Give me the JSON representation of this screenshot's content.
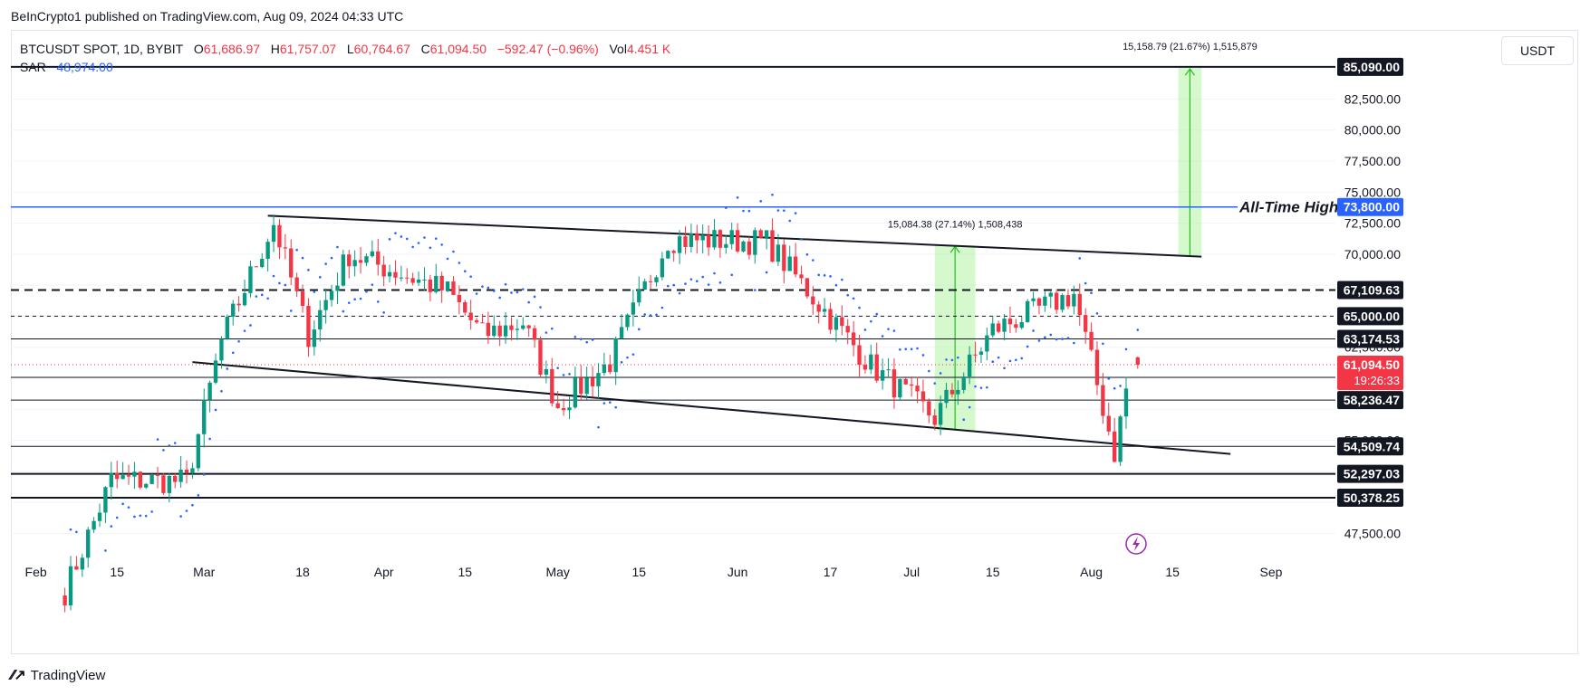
{
  "caption": "BeInCrypto1 published on TradingView.com, Aug 09, 2024 04:33 UTC",
  "legend": {
    "symbol": "BTCUSDT SPOT, 1D, BYBIT",
    "o_label": "O",
    "o_value": "61,686.97",
    "h_label": "H",
    "h_value": "61,757.07",
    "l_label": "L",
    "l_value": "60,764.67",
    "c_label": "C",
    "c_value": "61,094.50",
    "change": "−592.47 (−0.96%)",
    "vol_label": "Vol",
    "vol_value": "4.451 K",
    "sar_label": "SAR",
    "sar_value": "48,974.00"
  },
  "currency": "USDT",
  "footer": {
    "brand": "TradingView"
  },
  "colors": {
    "up": "#089981",
    "down": "#f23645",
    "sar": "#2962ff",
    "ath": "#2962ff",
    "range": "#b2f2a4"
  },
  "chart_data": {
    "type": "candlestick",
    "ylim": [
      46000,
      88000
    ],
    "y_ticks": [
      47500,
      50000,
      52500,
      55000,
      57500,
      60000,
      62500,
      65000,
      67500,
      70000,
      72500,
      75000,
      77500,
      80000,
      82500,
      85000
    ],
    "y_tick_labels": [
      "47,500.00",
      "",
      "",
      "55,000.00",
      "",
      "",
      "62,500.00",
      "",
      "67,500.00",
      "70,000.00",
      "72,500.00",
      "75,000.00",
      "77,500.00",
      "80,000.00",
      "82,500.00",
      ""
    ],
    "x_ticks": [
      {
        "label": "Feb",
        "date": "2024-02-01"
      },
      {
        "label": "15",
        "date": "2024-02-15"
      },
      {
        "label": "Mar",
        "date": "2024-03-01"
      },
      {
        "label": "18",
        "date": "2024-03-18"
      },
      {
        "label": "Apr",
        "date": "2024-04-01"
      },
      {
        "label": "15",
        "date": "2024-04-15"
      },
      {
        "label": "May",
        "date": "2024-05-01"
      },
      {
        "label": "15",
        "date": "2024-05-15"
      },
      {
        "label": "Jun",
        "date": "2024-06-01"
      },
      {
        "label": "17",
        "date": "2024-06-17"
      },
      {
        "label": "Jul",
        "date": "2024-07-01"
      },
      {
        "label": "15",
        "date": "2024-07-15"
      },
      {
        "label": "Aug",
        "date": "2024-08-01"
      },
      {
        "label": "15",
        "date": "2024-08-15"
      },
      {
        "label": "Sep",
        "date": "2024-09-01"
      }
    ],
    "levels": [
      {
        "value": 85090,
        "label": "85,090.00",
        "style": "thick"
      },
      {
        "value": 67109.63,
        "label": "67,109.63",
        "style": "dashed-thick"
      },
      {
        "value": 65000,
        "label": "65,000.00",
        "style": "dashed"
      },
      {
        "value": 63174.53,
        "label": "63,174.53",
        "style": "thin"
      },
      {
        "value": 60070.28,
        "label": "60,070.28",
        "style": "thin"
      },
      {
        "value": 58236.47,
        "label": "58,236.47",
        "style": "thin"
      },
      {
        "value": 54509.74,
        "label": "54,509.74",
        "style": "thin"
      },
      {
        "value": 52297.03,
        "label": "52,297.03",
        "style": "thick"
      },
      {
        "value": 50378.25,
        "label": "50,378.25",
        "style": "thick"
      }
    ],
    "ath": {
      "value": 73800,
      "label": "73,800.00",
      "annotation": "All-Time High"
    },
    "last_price": {
      "value": 61094.5,
      "label": "61,094.50",
      "countdown": "19:26:33"
    },
    "channel": {
      "upper": [
        {
          "date": "2024-03-12",
          "value": 73100
        },
        {
          "date": "2024-08-20",
          "value": 69800
        }
      ],
      "lower": [
        {
          "date": "2024-02-28",
          "value": 61300
        },
        {
          "date": "2024-08-25",
          "value": 53900
        }
      ]
    },
    "ranges": [
      {
        "from_date": "2024-07-05",
        "to_date": "2024-07-12",
        "low": 55800,
        "high": 70700,
        "label": "15,084.38 (27.14%) 1,508,438"
      },
      {
        "from_date": "2024-08-16",
        "to_date": "2024-08-20",
        "low": 69900,
        "high": 85000,
        "label": "15,158.79 (21.67%) 1,515,879"
      }
    ]
  }
}
